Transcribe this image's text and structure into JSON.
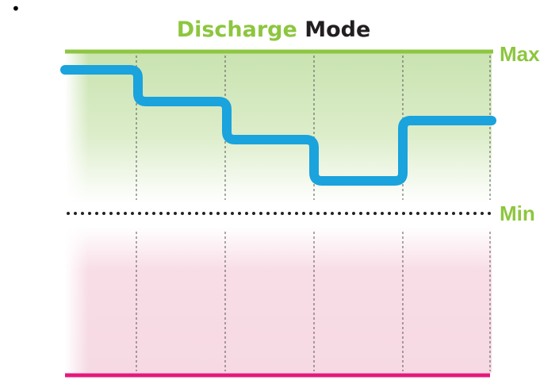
{
  "bullet": "•",
  "title": {
    "highlight": "Discharge",
    "rest": "Mode"
  },
  "labels": {
    "max": "Max",
    "min": "Min"
  }
}
